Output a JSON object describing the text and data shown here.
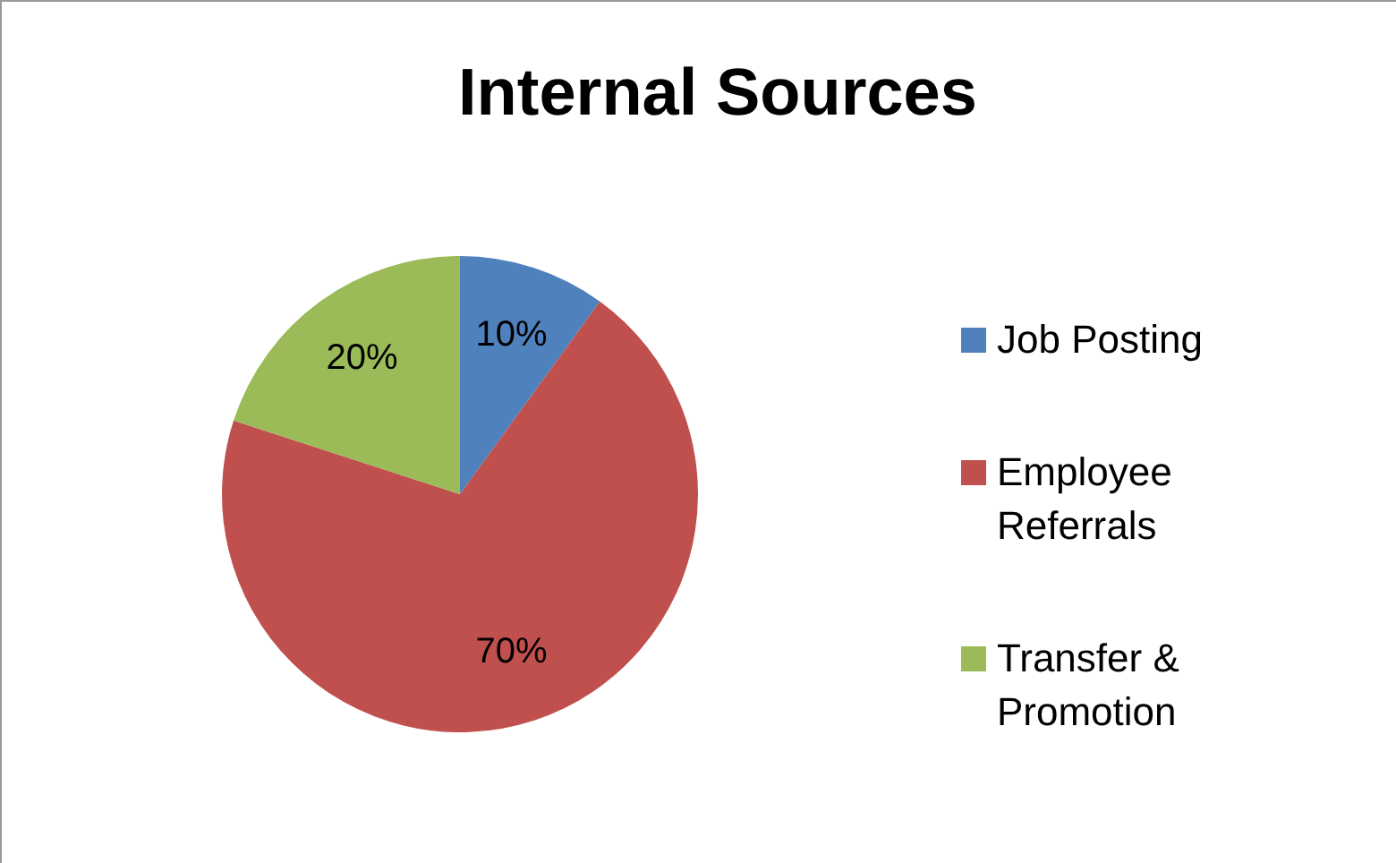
{
  "chart_data": {
    "type": "pie",
    "title": "Internal Sources",
    "categories": [
      "Job Posting",
      "Employee Referrals",
      "Transfer & Promotion"
    ],
    "values": [
      10,
      70,
      20
    ],
    "colors": [
      "#4f81bd",
      "#c0504d",
      "#9bbb59"
    ],
    "value_labels": [
      "10%",
      "70%",
      "20%"
    ],
    "legend": "right"
  }
}
